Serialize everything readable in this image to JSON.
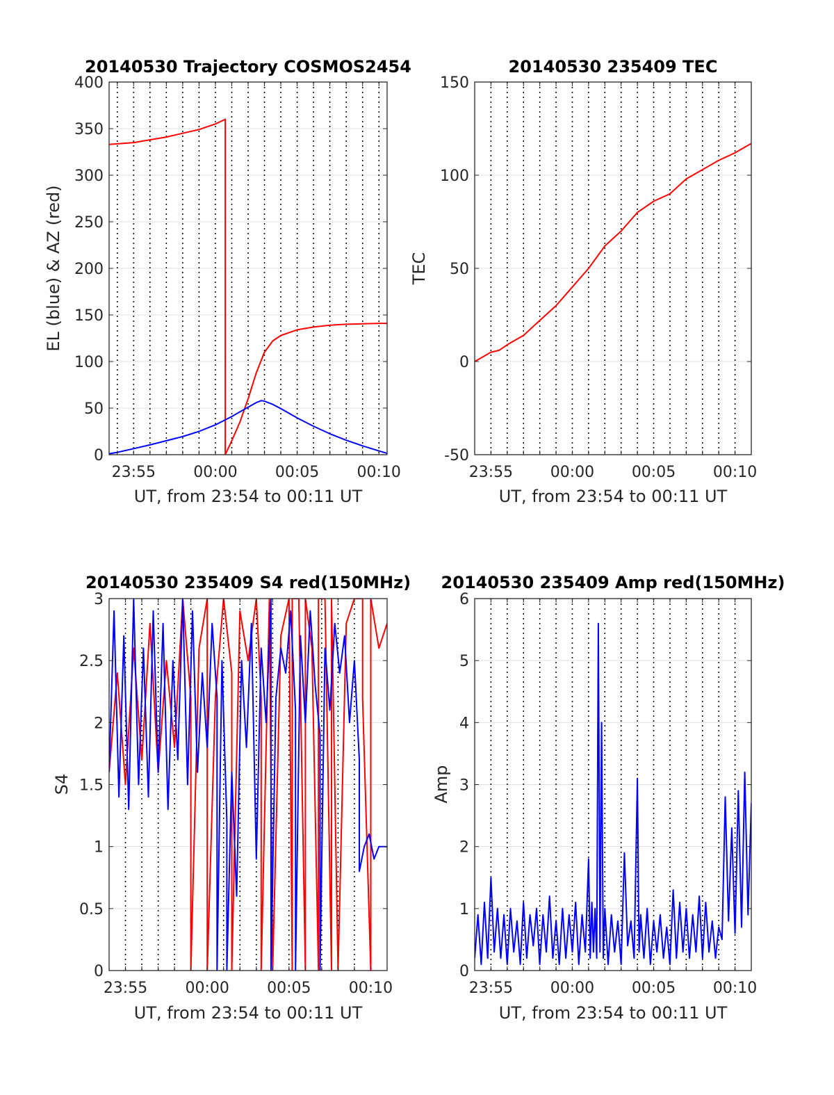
{
  "chart_data": [
    {
      "id": "trajectory",
      "type": "line",
      "title": "20140530 Trajectory COSMOS2454",
      "xlabel": "UT, from 23:54 to 00:11 UT",
      "ylabel": "EL (blue) & AZ (red)",
      "xlim": [
        -6.5,
        10.5
      ],
      "ylim": [
        0,
        400
      ],
      "xticks": [
        {
          "x": -5,
          "label": "23:55"
        },
        {
          "x": 0,
          "label": "00:00"
        },
        {
          "x": 5,
          "label": "00:05"
        },
        {
          "x": 10,
          "label": "00:10"
        }
      ],
      "yticks": [
        0,
        50,
        100,
        150,
        200,
        250,
        300,
        350,
        400
      ],
      "vgrid_step": 1,
      "series": [
        {
          "color": "#ff0000",
          "x": [
            -6.5,
            -5,
            -4,
            -3,
            -2,
            -1,
            0,
            0.6,
            0.6,
            0.6,
            1,
            1.5,
            2,
            2.5,
            3,
            3.5,
            4,
            5,
            6,
            7,
            8,
            9,
            10,
            10.5
          ],
          "y": [
            333,
            335,
            338,
            341,
            345,
            349,
            355,
            360,
            0,
            0,
            15,
            35,
            60,
            88,
            110,
            122,
            128,
            134,
            137,
            139,
            140,
            140.5,
            141,
            141
          ]
        },
        {
          "color": "#0000ff",
          "x": [
            -6.5,
            -6,
            -5,
            -4,
            -3,
            -2,
            -1,
            0,
            0.5,
            1,
            1.5,
            2,
            2.5,
            2.8,
            3,
            3.5,
            4,
            4.5,
            5,
            6,
            7,
            8,
            9,
            10,
            10.5
          ],
          "y": [
            1,
            2.5,
            6.5,
            10.5,
            15,
            19.5,
            25,
            32,
            36.5,
            41,
            46,
            51,
            56,
            58,
            57.5,
            54,
            49.5,
            44.5,
            39.5,
            30.5,
            22.5,
            15.5,
            9.5,
            4,
            1.5
          ]
        }
      ]
    },
    {
      "id": "tec",
      "type": "line",
      "title": "20140530 235409 TEC",
      "xlabel": "UT, from 23:54 to 00:11 UT",
      "ylabel": "TEC",
      "xlim": [
        -6,
        11
      ],
      "ylim": [
        -50,
        150
      ],
      "xticks": [
        {
          "x": -5,
          "label": "23:55"
        },
        {
          "x": 0,
          "label": "00:00"
        },
        {
          "x": 5,
          "label": "00:05"
        },
        {
          "x": 10,
          "label": "00:10"
        }
      ],
      "yticks": [
        -50,
        0,
        50,
        100,
        150
      ],
      "vgrid_step": 1,
      "series": [
        {
          "color": "#ff0000",
          "x": [
            -6,
            -5,
            -4.5,
            -4,
            -3,
            -2,
            -1,
            0,
            1,
            2,
            3,
            4,
            5,
            6,
            7,
            8,
            9,
            10,
            11
          ],
          "y": [
            0,
            5,
            6,
            9,
            14,
            22,
            30,
            40,
            50,
            62,
            70,
            80,
            86,
            90,
            98,
            103,
            108,
            112,
            117
          ]
        }
      ]
    },
    {
      "id": "s4",
      "type": "line",
      "title": "20140530 235409 S4 red(150MHz)",
      "xlabel": "UT, from 23:54 to 00:11 UT",
      "ylabel": "S4",
      "xlim": [
        -6,
        11
      ],
      "ylim": [
        0,
        3
      ],
      "xticks": [
        {
          "x": -5,
          "label": "23:55"
        },
        {
          "x": 0,
          "label": "00:00"
        },
        {
          "x": 5,
          "label": "00:05"
        },
        {
          "x": 10,
          "label": "00:10"
        }
      ],
      "yticks": [
        0,
        0.5,
        1,
        1.5,
        2,
        2.5,
        3
      ],
      "vgrid_step": 1,
      "series": [
        {
          "color": "#ff0000",
          "x": [
            -6,
            -5.5,
            -5,
            -4.5,
            -4,
            -3.5,
            -3,
            -2.5,
            -2,
            -1.5,
            -1,
            -1,
            -0.5,
            0,
            0,
            0.5,
            1,
            1.5,
            1.5,
            2,
            2.5,
            3,
            3.3,
            3.3,
            3.8,
            4,
            4.5,
            5,
            5.2,
            5.2,
            5.6,
            6,
            6,
            6.4,
            6.8,
            6.8,
            7.2,
            7.6,
            7.6,
            8,
            8.5,
            9,
            9.5,
            9.5,
            10,
            10,
            10.5,
            11
          ],
          "y": [
            1.6,
            2.4,
            1.5,
            2.6,
            1.7,
            2.8,
            1.6,
            2.5,
            1.8,
            3,
            2.2,
            0,
            2.6,
            3,
            0,
            2.2,
            3,
            2.4,
            0,
            2.9,
            2.5,
            3,
            2.2,
            0,
            3,
            0,
            2.7,
            3,
            0,
            3,
            3,
            0,
            3,
            2.6,
            0,
            3,
            3,
            0,
            3,
            0,
            2.8,
            3,
            3,
            2.2,
            0,
            3,
            2.6,
            2.8
          ]
        },
        {
          "color": "#0000ff",
          "x": [
            -6,
            -5.7,
            -5.4,
            -5.1,
            -4.8,
            -4.5,
            -4.2,
            -3.9,
            -3.6,
            -3.3,
            -3,
            -2.7,
            -2.4,
            -2.1,
            -1.8,
            -1.5,
            -1.2,
            -0.9,
            -0.6,
            -0.3,
            0,
            0.3,
            0.6,
            0.6,
            0.9,
            1.2,
            1.2,
            1.5,
            1.8,
            2.1,
            2.4,
            2.7,
            3,
            3.3,
            3.6,
            3.9,
            3.9,
            4.2,
            4.5,
            4.8,
            5.1,
            5.4,
            5.4,
            5.7,
            6,
            6.3,
            6.6,
            6.9,
            6.9,
            7.2,
            7.5,
            7.8,
            8.1,
            8.4,
            8.7,
            9,
            9.3,
            9.3,
            9.6,
            9.9,
            10.2,
            10.5,
            11
          ],
          "y": [
            1.6,
            2.9,
            1.4,
            2.7,
            1.3,
            3,
            1.5,
            2.6,
            1.4,
            2.9,
            1.6,
            2.8,
            1.3,
            2.5,
            1.7,
            3,
            1.5,
            2.9,
            1.6,
            2.4,
            1.8,
            2.8,
            2.2,
            0,
            2.5,
            1.2,
            0,
            1.6,
            0.6,
            2.5,
            1.8,
            2.8,
            0.9,
            2.6,
            2.0,
            3,
            0,
            2.2,
            2.6,
            2.4,
            2.9,
            2.1,
            0,
            2.7,
            2.0,
            2.9,
            2.3,
            1.9,
            0,
            2.6,
            2.1,
            2.8,
            2.4,
            2.7,
            2.0,
            2.5,
            1.7,
            0.8,
            1.0,
            1.1,
            0.9,
            1.0,
            1.0
          ]
        }
      ]
    },
    {
      "id": "amp",
      "type": "line",
      "title": "20140530 235409 Amp red(150MHz)",
      "xlabel": "UT, from 23:54 to 00:11 UT",
      "ylabel": "Amp",
      "xlim": [
        -6,
        11
      ],
      "ylim": [
        0,
        6
      ],
      "xticks": [
        {
          "x": -5,
          "label": "23:55"
        },
        {
          "x": 0,
          "label": "00:00"
        },
        {
          "x": 5,
          "label": "00:05"
        },
        {
          "x": 10,
          "label": "00:10"
        }
      ],
      "yticks": [
        0,
        1,
        2,
        3,
        4,
        5,
        6
      ],
      "vgrid_step": 1,
      "series": [
        {
          "color": "#0000ff",
          "x": [
            -6,
            -5.8,
            -5.6,
            -5.4,
            -5.2,
            -5,
            -4.8,
            -4.6,
            -4.4,
            -4.2,
            -4,
            -3.8,
            -3.6,
            -3.4,
            -3.2,
            -3,
            -2.8,
            -2.6,
            -2.4,
            -2.2,
            -2,
            -1.8,
            -1.6,
            -1.4,
            -1.2,
            -1,
            -0.8,
            -0.6,
            -0.4,
            -0.2,
            0,
            0.2,
            0.4,
            0.6,
            0.8,
            1.0,
            1.1,
            1.2,
            1.3,
            1.4,
            1.5,
            1.6,
            1.7,
            1.8,
            1.9,
            2.0,
            2.2,
            2.4,
            2.6,
            2.8,
            3.0,
            3.2,
            3.4,
            3.6,
            3.8,
            4.0,
            4.1,
            4.2,
            4.4,
            4.6,
            4.8,
            5.0,
            5.2,
            5.4,
            5.6,
            5.8,
            6.0,
            6.2,
            6.4,
            6.6,
            6.8,
            7.0,
            7.2,
            7.4,
            7.6,
            7.8,
            8.0,
            8.2,
            8.4,
            8.6,
            8.8,
            9.0,
            9.2,
            9.4,
            9.6,
            9.8,
            10.0,
            10.2,
            10.4,
            10.6,
            10.8,
            11
          ],
          "y": [
            0.2,
            0.9,
            0.1,
            1.1,
            0.2,
            1.5,
            0.3,
            1.0,
            0.2,
            0.9,
            0.1,
            1.0,
            0.3,
            0.8,
            0.1,
            1.1,
            0.2,
            0.9,
            0.4,
            1.0,
            0.1,
            0.9,
            0.3,
            1.2,
            0.2,
            0.8,
            0.1,
            1.0,
            0.2,
            0.9,
            0.3,
            1.1,
            0.1,
            0.9,
            0.3,
            1.8,
            0.2,
            1.1,
            0.3,
            1.0,
            0.2,
            5.6,
            0.3,
            4.0,
            0.2,
            1.0,
            0.1,
            0.9,
            0.3,
            0.8,
            0.1,
            1.9,
            0.4,
            0.8,
            0.2,
            3.1,
            0.3,
            0.9,
            0.2,
            1.0,
            0.1,
            0.8,
            0.3,
            0.9,
            0.2,
            0.7,
            0.1,
            1.3,
            0.2,
            1.1,
            0.3,
            1.0,
            0.2,
            0.9,
            0.3,
            1.2,
            0.2,
            1.1,
            0.3,
            0.8,
            0.2,
            0.7,
            0.5,
            2.8,
            0.8,
            2.3,
            0.6,
            2.9,
            0.7,
            3.2,
            0.9,
            2.7
          ]
        }
      ]
    }
  ]
}
